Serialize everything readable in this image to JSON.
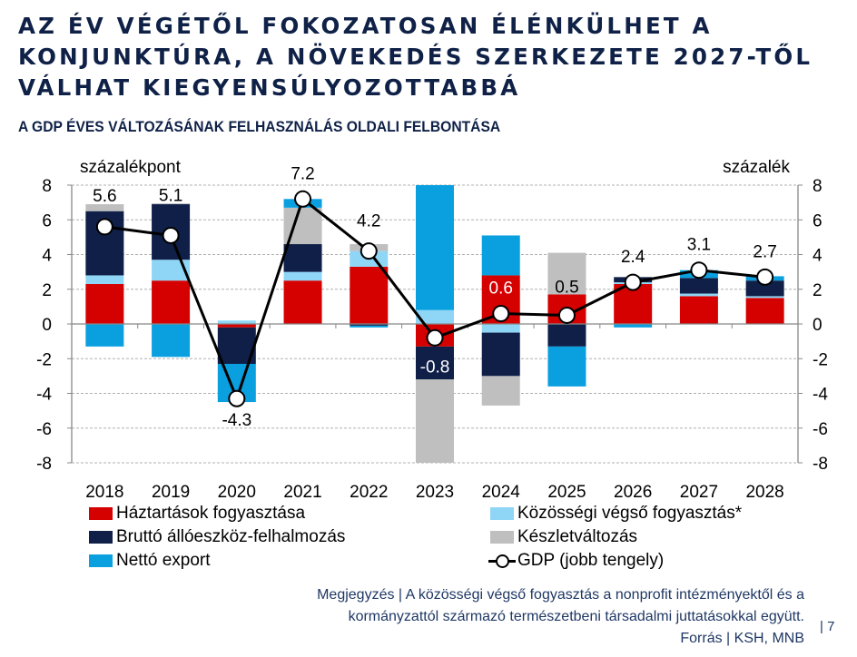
{
  "slide": {
    "title": "AZ ÉV VÉGÉTŐL FOKOZATOSAN ÉLÉNKÜLHET A KONJUNKTÚRA, A NÖVEKEDÉS SZERKEZETE 2027-TŐL VÁLHAT KIEGYENSÚLYOZOTTABBÁ",
    "title_lines": [
      "AZ ÉV VÉGÉTŐL FOKOZATOSAN ÉLÉNKÜLHET A",
      "KONJUNKTÚRA, A NÖVEKEDÉS SZERKEZETE 2027-TŐL",
      "VÁLHAT KIEGYENSÚLYOZOTTABBÁ"
    ],
    "subtitle": "A GDP ÉVES VÁLTOZÁSÁNAK FELHASZNÁLÁS OLDALI FELBONTÁSA",
    "note_line1": "Megjegyzés | A közösségi végső fogyasztás a nonprofit intézményektől és a",
    "note_line2": "kormányzattól származó természetbeni társadalmi juttatásokkal együtt.",
    "source": "Forrás | KSH, MNB",
    "page_number": "| 7"
  },
  "chart_data": {
    "type": "bar",
    "stacked": true,
    "title": "A GDP ÉVES VÁLTOZÁSÁNAK FELHASZNÁLÁS OLDALI FELBONTÁSA",
    "ylabel_left": "százalékpont",
    "ylabel_right": "százalék",
    "ylim": [
      -8,
      8
    ],
    "yticks": [
      8,
      6,
      4,
      2,
      0,
      -2,
      -4,
      -6,
      -8
    ],
    "grid": true,
    "legend_position": "bottom",
    "categories": [
      "2018",
      "2019",
      "2020",
      "2021",
      "2022",
      "2023",
      "2024",
      "2025",
      "2026",
      "2027",
      "2028"
    ],
    "series": [
      {
        "name": "Háztartások fogyasztása",
        "color": "#d50000",
        "values": [
          2.3,
          2.5,
          -0.2,
          2.5,
          3.3,
          -1.3,
          2.8,
          1.7,
          2.3,
          1.6,
          1.5
        ]
      },
      {
        "name": "Közösségi végső fogyasztás*",
        "color": "#8fd6f6",
        "values": [
          0.5,
          1.2,
          0.2,
          0.5,
          0.9,
          0.8,
          -0.5,
          0.0,
          0.1,
          0.15,
          0.1
        ]
      },
      {
        "name": "Bruttó állóeszköz-felhalmozás",
        "color": "#0f1f48",
        "values": [
          3.7,
          3.2,
          -2.1,
          1.6,
          -0.1,
          -1.9,
          -2.5,
          -1.3,
          0.3,
          0.9,
          0.9
        ]
      },
      {
        "name": "Készletváltozás",
        "color": "#bfbfbf",
        "values": [
          0.4,
          0.05,
          0.0,
          2.1,
          0.4,
          -4.8,
          -1.7,
          2.4,
          0.0,
          0.0,
          0.0
        ]
      },
      {
        "name": "Nettó export",
        "color": "#0aa0e0",
        "values": [
          -1.3,
          -1.9,
          -2.2,
          0.5,
          -0.1,
          7.2,
          2.3,
          -2.3,
          -0.2,
          0.45,
          0.25
        ]
      }
    ],
    "line": {
      "name": "GDP (jobb tengely)",
      "values": [
        5.6,
        5.1,
        -4.3,
        7.2,
        4.2,
        -0.8,
        0.6,
        0.5,
        2.4,
        3.1,
        2.7
      ],
      "labels": [
        "5.6",
        "5.1",
        "-4.3",
        "7.2",
        "4.2",
        "-0.8",
        "0.6",
        "0.5",
        "2.4",
        "3.1",
        "2.7"
      ]
    }
  },
  "legend": [
    {
      "label": "Háztartások fogyasztása",
      "color": "#d50000"
    },
    {
      "label": "Közösségi végső fogyasztás*",
      "color": "#8fd6f6"
    },
    {
      "label": "Bruttó állóeszköz-felhalmozás",
      "color": "#0f1f48"
    },
    {
      "label": "Készletváltozás",
      "color": "#bfbfbf"
    },
    {
      "label": "Nettó export",
      "color": "#0aa0e0"
    },
    {
      "label": "GDP (jobb tengely)",
      "color": "#000000"
    }
  ]
}
